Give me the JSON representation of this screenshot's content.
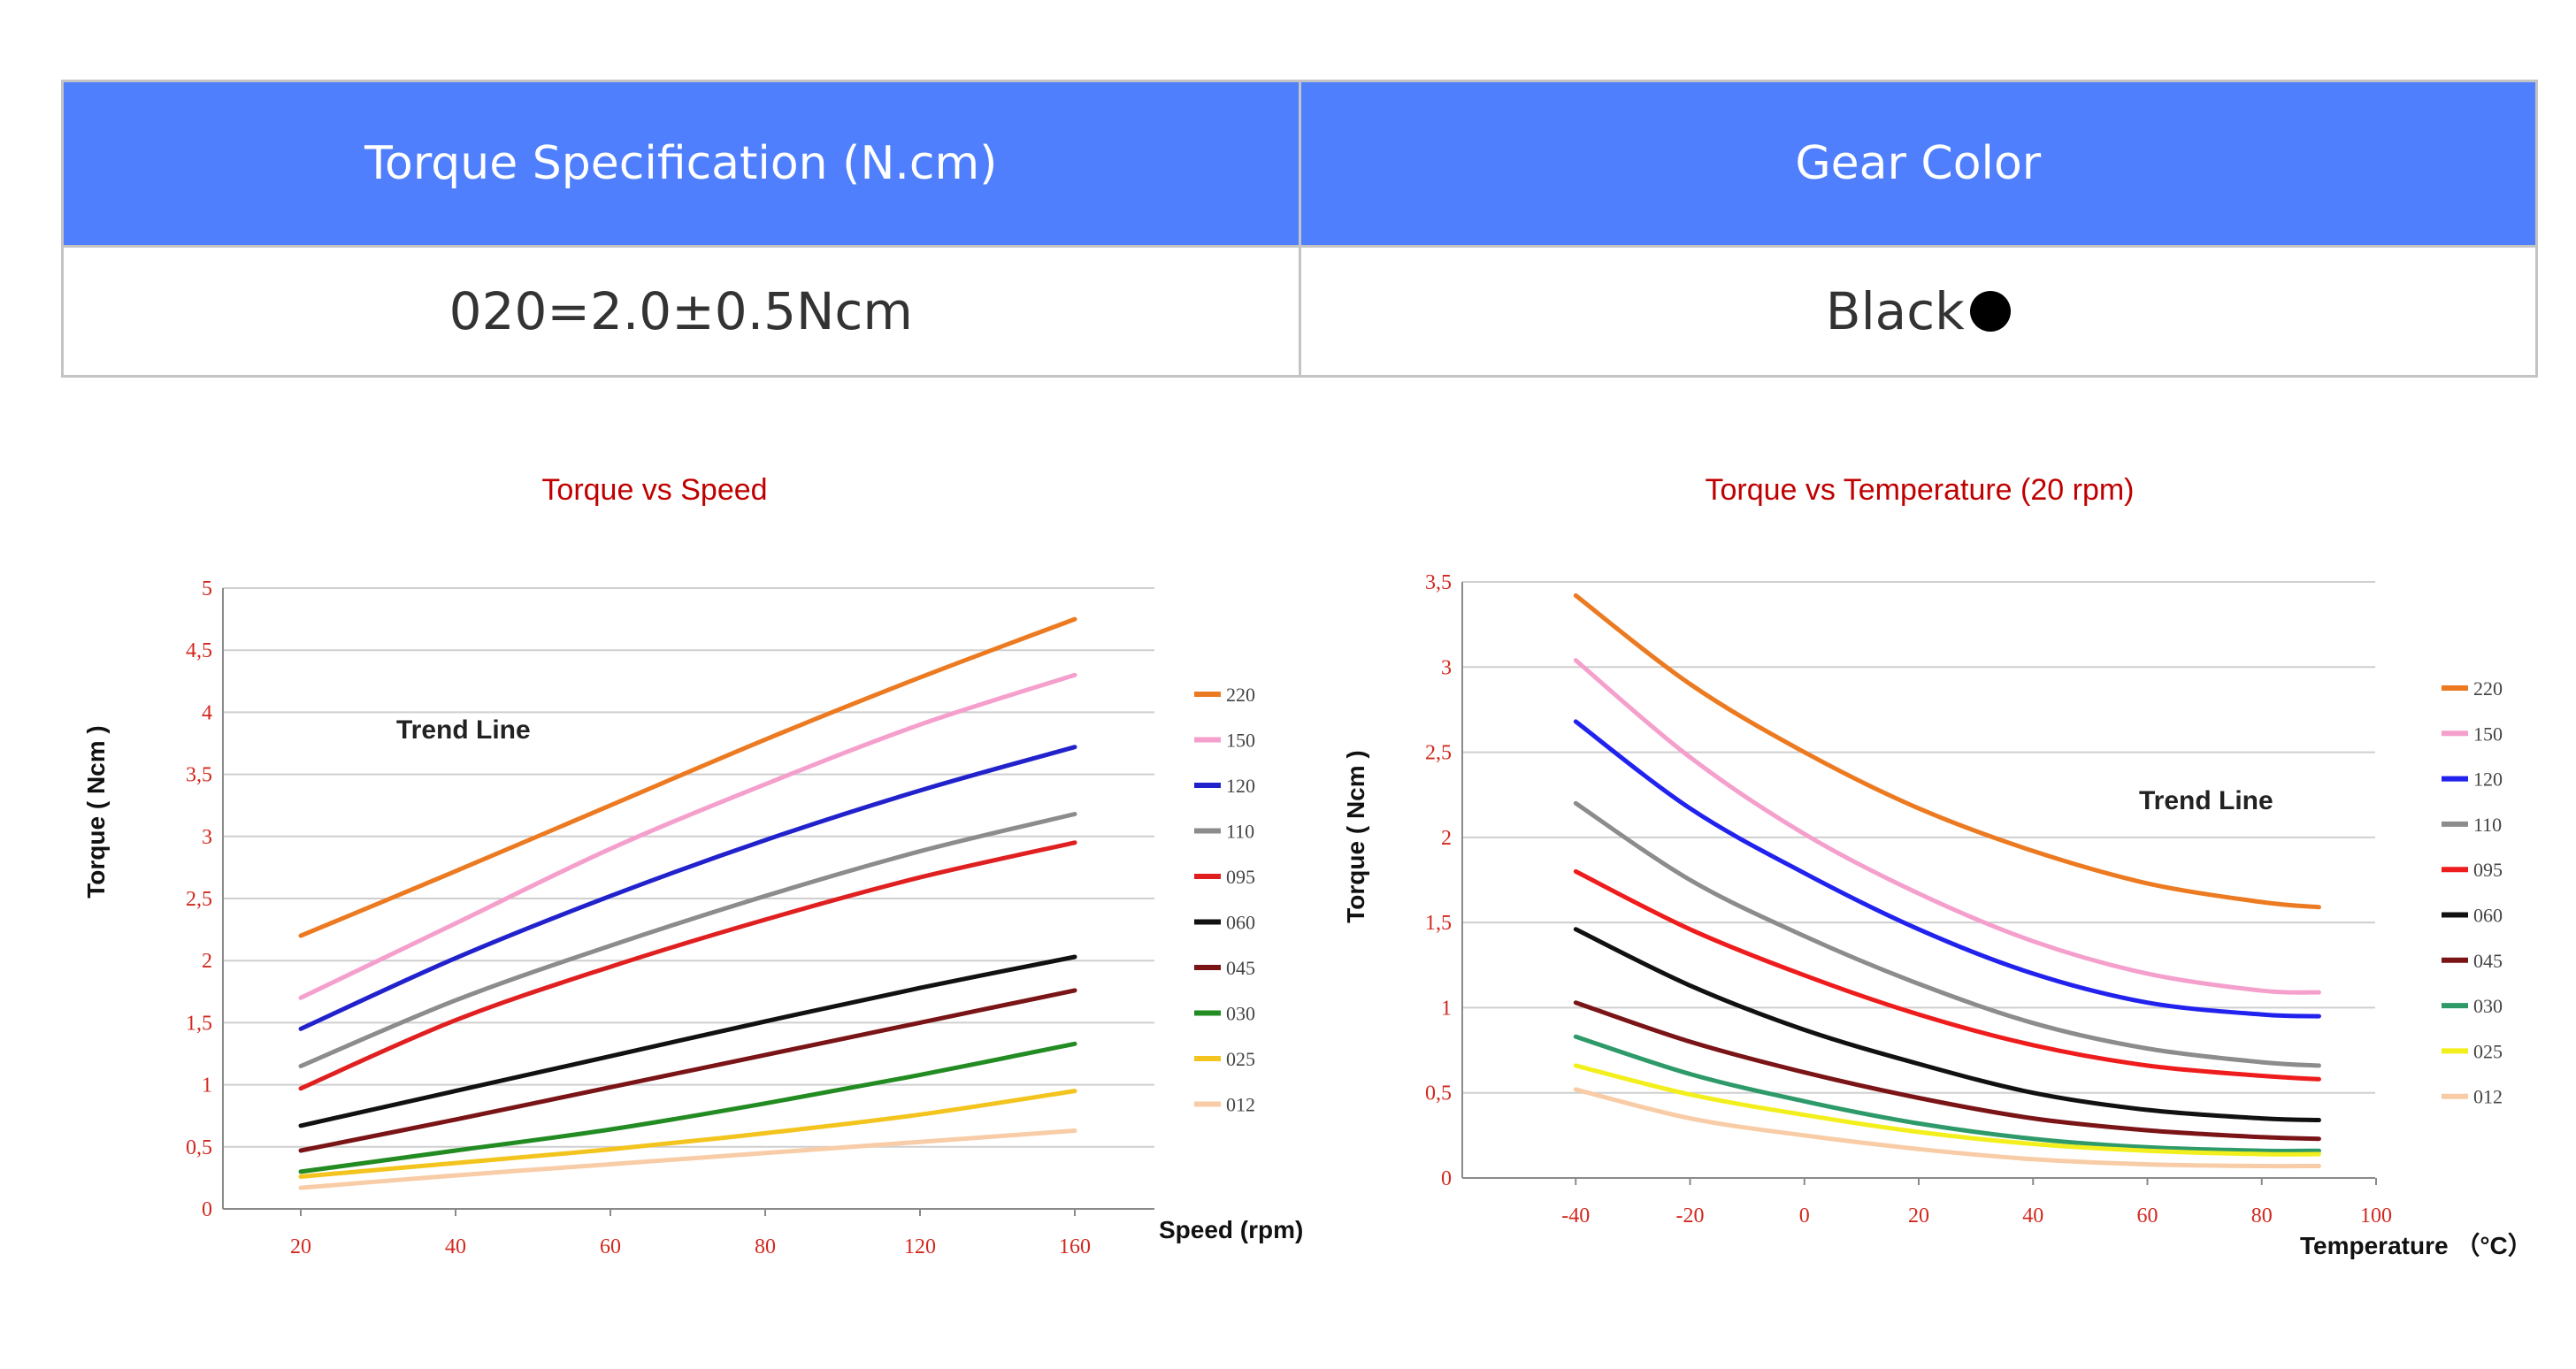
{
  "table": {
    "headers": [
      "Torque Specification (N.cm)",
      "Gear Color"
    ],
    "spec_value": "020=2.0±0.5Ncm",
    "color_value": "Black",
    "color_dot_hex": "#000000",
    "header_bg": "#4f7ffd"
  },
  "chart_data": [
    {
      "type": "line",
      "title": "Torque vs Speed",
      "xlabel": "Speed (rpm)",
      "ylabel": "Torque ( Ncm )",
      "annotation": "Trend Line",
      "xticks": [
        "20",
        "40",
        "60",
        "80",
        "120",
        "160"
      ],
      "ylim": [
        0,
        5
      ],
      "yticks": [
        "0",
        "0,5",
        "1",
        "1,5",
        "2",
        "2,5",
        "3",
        "3,5",
        "4",
        "4,5",
        "5"
      ],
      "legend_position": "right",
      "grid": true,
      "categories": [
        "20",
        "40",
        "60",
        "80",
        "120",
        "160"
      ],
      "series": [
        {
          "name": "220",
          "color": "#ec7a21",
          "values": [
            2.2,
            2.72,
            3.25,
            3.78,
            4.28,
            4.75
          ]
        },
        {
          "name": "150",
          "color": "#f59fcd",
          "values": [
            1.7,
            2.3,
            2.9,
            3.42,
            3.9,
            4.3
          ]
        },
        {
          "name": "120",
          "color": "#2222cc",
          "values": [
            1.45,
            2.02,
            2.52,
            2.97,
            3.37,
            3.72
          ]
        },
        {
          "name": "110",
          "color": "#8c8c8c",
          "values": [
            1.15,
            1.68,
            2.12,
            2.52,
            2.88,
            3.18
          ]
        },
        {
          "name": "095",
          "color": "#e02020",
          "values": [
            0.97,
            1.52,
            1.95,
            2.33,
            2.67,
            2.95
          ]
        },
        {
          "name": "060",
          "color": "#111111",
          "values": [
            0.67,
            0.95,
            1.23,
            1.51,
            1.78,
            2.03
          ]
        },
        {
          "name": "045",
          "color": "#7a1416",
          "values": [
            0.47,
            0.72,
            0.98,
            1.24,
            1.5,
            1.76
          ]
        },
        {
          "name": "030",
          "color": "#228b22",
          "values": [
            0.3,
            0.47,
            0.64,
            0.85,
            1.08,
            1.33
          ]
        },
        {
          "name": "025",
          "color": "#f3c41d",
          "values": [
            0.26,
            0.37,
            0.48,
            0.61,
            0.76,
            0.95
          ]
        },
        {
          "name": "012",
          "color": "#f8cca6",
          "values": [
            0.17,
            0.27,
            0.36,
            0.45,
            0.54,
            0.63
          ]
        }
      ]
    },
    {
      "type": "line",
      "title": "Torque vs Temperature (20 rpm)",
      "xlabel": "Temperature （°C）",
      "ylabel": "Torque ( Ncm )",
      "annotation": "Trend Line",
      "xticks": [
        "-40",
        "-20",
        "0",
        "20",
        "40",
        "60",
        "80",
        "100"
      ],
      "xlim": [
        -60,
        100
      ],
      "ylim": [
        0,
        3.5
      ],
      "yticks": [
        "0",
        "0,5",
        "1",
        "1,5",
        "2",
        "2,5",
        "3",
        "3,5"
      ],
      "legend_position": "right",
      "grid": true,
      "x": [
        -40,
        -20,
        0,
        20,
        40,
        60,
        80,
        90
      ],
      "series": [
        {
          "name": "220",
          "color": "#ec7a21",
          "values": [
            3.42,
            2.9,
            2.5,
            2.17,
            1.92,
            1.73,
            1.62,
            1.59
          ]
        },
        {
          "name": "150",
          "color": "#f59fcd",
          "values": [
            3.04,
            2.47,
            2.02,
            1.67,
            1.39,
            1.2,
            1.1,
            1.09
          ]
        },
        {
          "name": "120",
          "color": "#2222ee",
          "values": [
            2.68,
            2.17,
            1.79,
            1.46,
            1.2,
            1.03,
            0.96,
            0.95
          ]
        },
        {
          "name": "110",
          "color": "#8c8c8c",
          "values": [
            2.2,
            1.75,
            1.42,
            1.14,
            0.91,
            0.76,
            0.68,
            0.66
          ]
        },
        {
          "name": "095",
          "color": "#ee1c1c",
          "values": [
            1.8,
            1.46,
            1.19,
            0.96,
            0.78,
            0.66,
            0.6,
            0.58
          ]
        },
        {
          "name": "060",
          "color": "#111111",
          "values": [
            1.46,
            1.13,
            0.87,
            0.67,
            0.5,
            0.4,
            0.35,
            0.34
          ]
        },
        {
          "name": "045",
          "color": "#7a1416",
          "values": [
            1.03,
            0.8,
            0.62,
            0.47,
            0.35,
            0.28,
            0.24,
            0.23
          ]
        },
        {
          "name": "030",
          "color": "#2e9a6a",
          "values": [
            0.83,
            0.61,
            0.45,
            0.32,
            0.23,
            0.18,
            0.16,
            0.16
          ]
        },
        {
          "name": "025",
          "color": "#f2ef1d",
          "values": [
            0.66,
            0.49,
            0.37,
            0.27,
            0.2,
            0.16,
            0.14,
            0.14
          ]
        },
        {
          "name": "012",
          "color": "#f8cca6",
          "values": [
            0.52,
            0.35,
            0.25,
            0.17,
            0.11,
            0.08,
            0.07,
            0.07
          ]
        }
      ]
    }
  ]
}
